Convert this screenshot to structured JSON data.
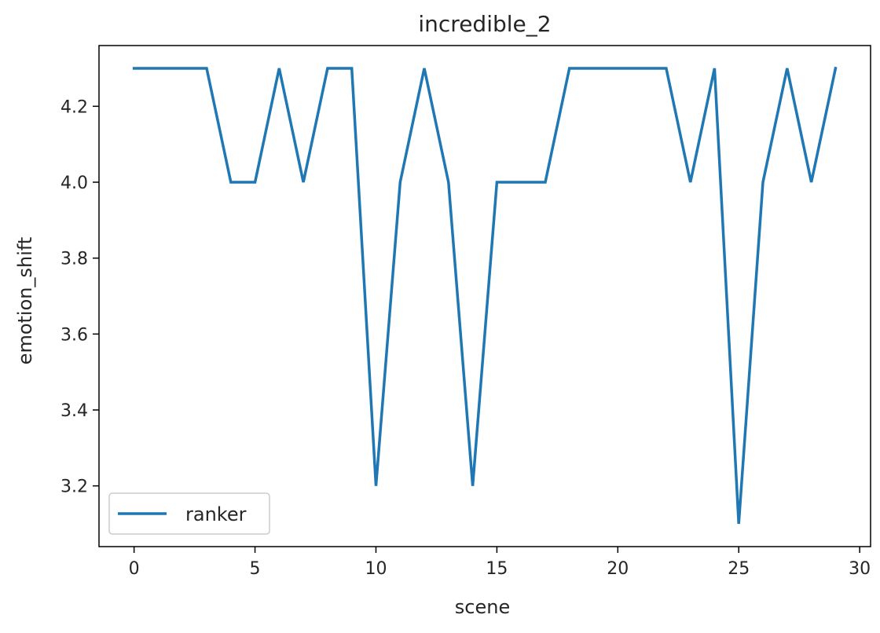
{
  "chart_data": {
    "type": "line",
    "title": "incredible_2",
    "xlabel": "scene",
    "ylabel": "emotion_shift",
    "xlim": [
      -1.45,
      30.45
    ],
    "ylim": [
      3.04,
      4.36
    ],
    "xticks": [
      0,
      5,
      10,
      15,
      20,
      25,
      30
    ],
    "yticks": [
      3.2,
      3.4,
      3.6,
      3.8,
      4.0,
      4.2
    ],
    "ytick_labels": [
      "3.2",
      "3.4",
      "3.6",
      "3.8",
      "4.0",
      "4.2"
    ],
    "grid": false,
    "legend_position": "lower-left",
    "series": [
      {
        "name": "ranker",
        "color": "#1f77b4",
        "x": [
          0,
          1,
          2,
          3,
          4,
          5,
          6,
          7,
          8,
          9,
          10,
          11,
          12,
          13,
          14,
          15,
          16,
          17,
          18,
          19,
          20,
          21,
          22,
          23,
          24,
          25,
          26,
          27,
          28,
          29
        ],
        "y": [
          4.3,
          4.3,
          4.3,
          4.3,
          4.0,
          4.0,
          4.3,
          4.0,
          4.3,
          4.3,
          3.2,
          4.0,
          4.3,
          4.0,
          3.2,
          4.0,
          4.0,
          4.0,
          4.3,
          4.3,
          4.3,
          4.3,
          4.3,
          4.0,
          4.3,
          3.1,
          4.0,
          4.3,
          4.0,
          4.3
        ]
      }
    ]
  }
}
